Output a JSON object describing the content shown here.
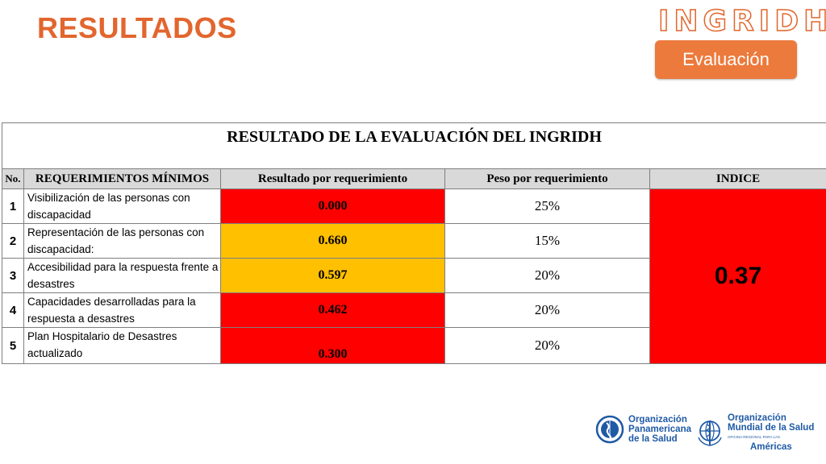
{
  "slide": {
    "title": "RESULTADOS",
    "brand": "INGRIDH",
    "badge": "Evaluación"
  },
  "table": {
    "caption": "RESULTADO DE LA EVALUACIÓN DEL INGRIDH",
    "headers": [
      "No.",
      "REQUERIMIENTOS MÍNIMOS",
      "Resultado por requerimiento",
      "Peso por requerimiento",
      "INDICE"
    ],
    "rows": [
      {
        "no": "1",
        "requirement": "Visibilización de las personas con discapacidad",
        "result": "0.000",
        "weight": "25%"
      },
      {
        "no": "2",
        "requirement": "Representación de las personas con discapacidad:",
        "result": "0.660",
        "weight": "15%"
      },
      {
        "no": "3",
        "requirement": "Accesibilidad para la respuesta frente a desastres",
        "result": "0.597",
        "weight": "20%"
      },
      {
        "no": "4",
        "requirement": "Capacidades desarrolladas para la respuesta a desastres",
        "result": "0.462",
        "weight": "20%"
      },
      {
        "no": "5",
        "requirement": "Plan Hospitalario de Desastres actualizado",
        "result": "0.300",
        "weight": "20%"
      }
    ],
    "index": "0.37"
  },
  "colors": {
    "accent": "#e2662e",
    "badge": "#ec7a3c",
    "red": "#ff0000",
    "amber": "#ffc000",
    "header_gray": "#d9d9d9"
  },
  "logos": {
    "ops": {
      "line1": "Organización",
      "line2": "Panamericana",
      "line3": "de la Salud",
      "icon": "ops-emblem-icon"
    },
    "oms": {
      "line1": "Organización",
      "line2": "Mundial de la Salud",
      "sub": "OFICINA REGIONAL PARA LAS",
      "line3": "Américas",
      "icon": "who-emblem-icon"
    }
  }
}
